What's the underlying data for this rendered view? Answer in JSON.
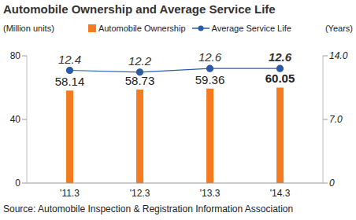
{
  "chart_data": {
    "type": "bar",
    "title": "Automobile Ownership and Average Service Life",
    "categories": [
      "'11.3",
      "'12.3",
      "'13.3",
      "'14.3"
    ],
    "series": [
      {
        "name": "Automobile Ownership",
        "type": "bar",
        "color": "#f47b20",
        "values": [
          58.14,
          58.73,
          59.36,
          60.05
        ]
      },
      {
        "name": "Average Service Life",
        "type": "line",
        "color": "#2b5aa8",
        "marker": "circle",
        "axis": "y2",
        "values": [
          12.4,
          12.2,
          12.6,
          12.6
        ]
      }
    ],
    "ylim": [
      0,
      80
    ],
    "yticks": [
      0,
      40,
      80
    ],
    "y2lim": [
      0,
      14
    ],
    "y2ticks": [
      0,
      {
        "value": 7,
        "label": "7.0"
      },
      {
        "value": 14,
        "label": "14.0"
      }
    ],
    "y_label": "(Million units)",
    "y2_label": "(Years)",
    "legend": "top",
    "data_labels": true,
    "grid": false,
    "source": "Source: Automobile Inspection & Registration Information Association"
  }
}
